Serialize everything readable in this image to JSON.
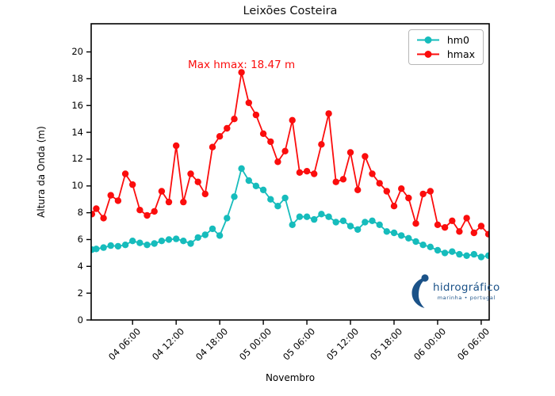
{
  "chart_data": {
    "type": "line",
    "title": "Leixões Costeira",
    "xlabel": "Novembro",
    "ylabel": "Altura da Onda (m)",
    "x_unit": "hours since 04 Nov 00:00",
    "xlim": [
      0.3,
      55.1
    ],
    "ylim": [
      0,
      22.1
    ],
    "grid": false,
    "yticks": [
      0,
      2,
      4,
      6,
      8,
      10,
      12,
      14,
      16,
      18,
      20
    ],
    "xticks": [
      {
        "t": 6,
        "label": "04 06:00"
      },
      {
        "t": 12,
        "label": "04 12:00"
      },
      {
        "t": 18,
        "label": "04 18:00"
      },
      {
        "t": 24,
        "label": "05 00:00"
      },
      {
        "t": 30,
        "label": "05 06:00"
      },
      {
        "t": 36,
        "label": "05 12:00"
      },
      {
        "t": 42,
        "label": "05 18:00"
      },
      {
        "t": 48,
        "label": "06 00:00"
      },
      {
        "t": 54,
        "label": "06 06:00"
      }
    ],
    "x": [
      0.4,
      1,
      2,
      3,
      4,
      5,
      6,
      7,
      8,
      9,
      10,
      11,
      12,
      13,
      14,
      15,
      16,
      17,
      18,
      19,
      20,
      21,
      22,
      23,
      24,
      25,
      26,
      27,
      28,
      29,
      30,
      31,
      32,
      33,
      34,
      35,
      36,
      37,
      38,
      39,
      40,
      41,
      42,
      43,
      44,
      45,
      46,
      47,
      48,
      49,
      50,
      51,
      52,
      53,
      54,
      55
    ],
    "series": [
      {
        "name": "hm0",
        "color": "#16bcbc",
        "values": [
          5.25,
          5.3,
          5.4,
          5.55,
          5.5,
          5.6,
          5.9,
          5.75,
          5.6,
          5.7,
          5.9,
          6.0,
          6.05,
          5.9,
          5.7,
          6.15,
          6.35,
          6.8,
          6.3,
          7.6,
          9.2,
          11.3,
          10.4,
          10.0,
          9.7,
          9.0,
          8.5,
          9.1,
          7.1,
          7.7,
          7.7,
          7.5,
          7.9,
          7.7,
          7.3,
          7.4,
          7.0,
          6.75,
          7.3,
          7.4,
          7.1,
          6.6,
          6.5,
          6.3,
          6.1,
          5.85,
          5.6,
          5.45,
          5.2,
          5.0,
          5.1,
          4.9,
          4.8,
          4.9,
          4.7,
          4.8
        ]
      },
      {
        "name": "hmax",
        "color": "#fb0d0d",
        "values": [
          7.9,
          8.3,
          7.6,
          9.3,
          8.9,
          10.9,
          10.1,
          8.2,
          7.8,
          8.1,
          9.6,
          8.8,
          13.0,
          8.8,
          10.9,
          10.3,
          9.4,
          12.9,
          13.7,
          14.3,
          15.0,
          18.47,
          16.2,
          15.3,
          13.9,
          13.3,
          11.8,
          12.6,
          14.9,
          11.0,
          11.1,
          10.9,
          13.1,
          15.4,
          10.3,
          10.5,
          12.5,
          9.7,
          12.2,
          10.9,
          10.2,
          9.6,
          8.5,
          9.8,
          9.1,
          7.2,
          9.4,
          9.6,
          7.1,
          6.9,
          7.4,
          6.6,
          7.6,
          6.5,
          7.0,
          6.4
        ]
      }
    ],
    "legend": {
      "position": "upper right",
      "items": [
        "hm0",
        "hmax"
      ]
    },
    "annotation": {
      "text": "Max hmax: 18.47 m",
      "x": 21,
      "y": 19.0,
      "color": "#fb0d0d"
    },
    "max_hmax_m": 18.47
  },
  "logo": {
    "text": "hidrográfico",
    "subtext": "marinha • portugal",
    "color": "#1b5288"
  }
}
